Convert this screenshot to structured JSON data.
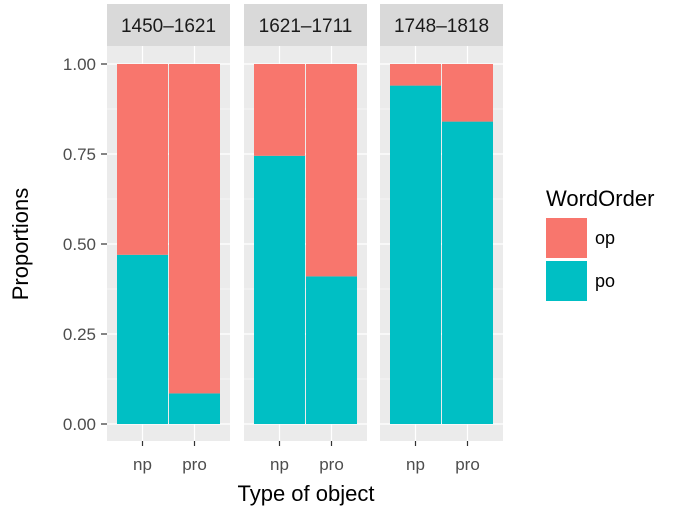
{
  "chart_data": {
    "type": "bar",
    "stacked": true,
    "facets": [
      {
        "label": "1450–1621",
        "categories": [
          "np",
          "pro"
        ],
        "po": [
          0.47,
          0.085
        ],
        "op": [
          0.53,
          0.915
        ]
      },
      {
        "label": "1621–1711",
        "categories": [
          "np",
          "pro"
        ],
        "po": [
          0.745,
          0.41
        ],
        "op": [
          0.255,
          0.59
        ]
      },
      {
        "label": "1748–1818",
        "categories": [
          "np",
          "pro"
        ],
        "po": [
          0.94,
          0.84
        ],
        "op": [
          0.06,
          0.16
        ]
      }
    ],
    "xlabel": "Type of object",
    "ylabel": "Proportions",
    "ylim": [
      0,
      1
    ],
    "yticks": [
      "0.00",
      "0.25",
      "0.50",
      "0.75",
      "1.00"
    ],
    "ytick_values": [
      0,
      0.25,
      0.5,
      0.75,
      1
    ],
    "legend": {
      "title": "WordOrder",
      "position": "right",
      "entries": [
        {
          "name": "op",
          "color": "#F8766D"
        },
        {
          "name": "po",
          "color": "#00BFC4"
        }
      ]
    },
    "grid": true,
    "colors": {
      "panel": "#EBEBEB",
      "strip": "#D9D9D9",
      "grid": "#FFFFFF"
    }
  }
}
